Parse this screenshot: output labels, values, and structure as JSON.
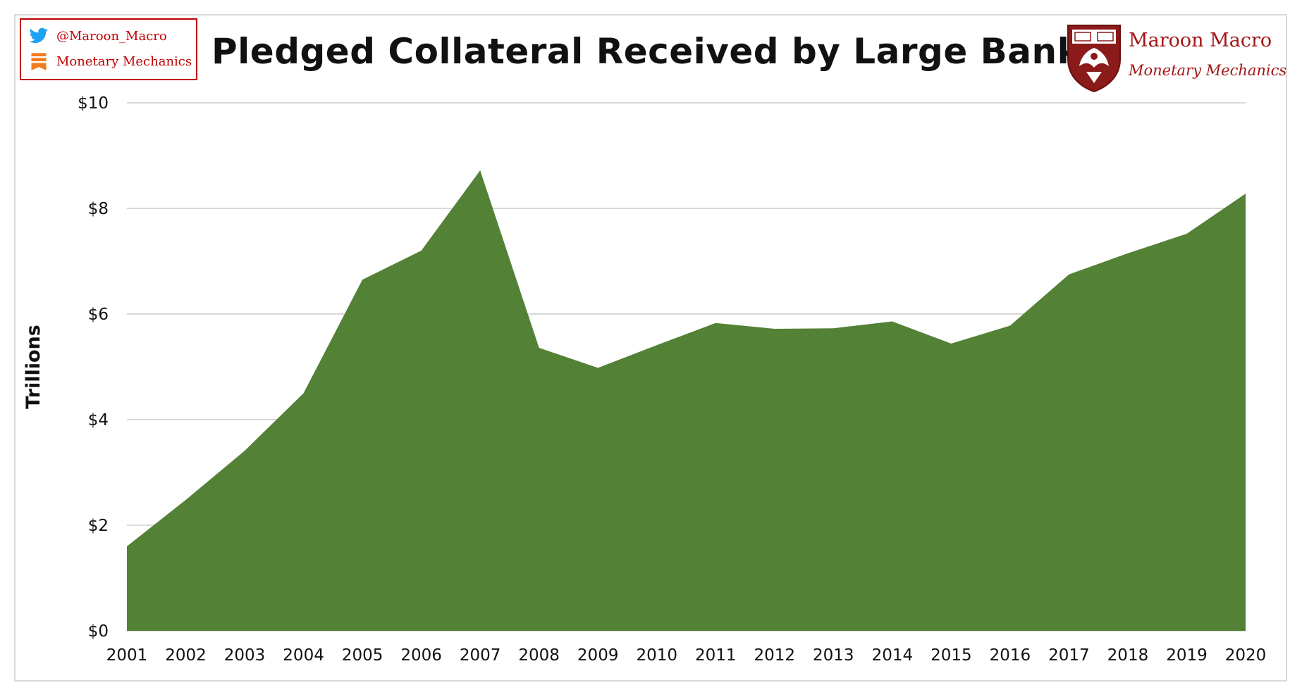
{
  "title": "Pledged Collateral Received by Large Banks",
  "social": {
    "twitter_handle": "@Maroon_Macro",
    "blog_name": "Monetary Mechanics",
    "twitter_icon": "twitter-bird-icon",
    "blog_icon": "bookmark-icon"
  },
  "brand": {
    "name": "Maroon Macro",
    "subtitle": "Monetary Mechanics",
    "logo": "university-shield-phoenix-logo"
  },
  "colors": {
    "area_fill": "#538135",
    "grid": "#d9d9d9",
    "brand": "#a31515",
    "social_accent": "#c00000"
  },
  "chart_data": {
    "type": "area",
    "title": "Pledged Collateral Received by Large Banks",
    "xlabel": "",
    "ylabel": "Trillions",
    "x": [
      "2001",
      "2002",
      "2003",
      "2004",
      "2005",
      "2006",
      "2007",
      "2008",
      "2009",
      "2010",
      "2011",
      "2012",
      "2013",
      "2014",
      "2015",
      "2016",
      "2017",
      "2018",
      "2019",
      "2020"
    ],
    "series": [
      {
        "values": [
          1.6,
          2.48,
          3.41,
          4.5,
          6.65,
          7.2,
          8.72,
          5.36,
          4.98,
          5.41,
          5.83,
          5.72,
          5.73,
          5.86,
          5.44,
          5.78,
          6.75,
          7.15,
          7.52,
          8.28
        ]
      }
    ],
    "ylim": [
      0,
      10
    ],
    "yticks": [
      0,
      2,
      4,
      6,
      8,
      10
    ],
    "ytick_labels": [
      "$0",
      "$2",
      "$4",
      "$6",
      "$8",
      "$10"
    ],
    "grid": true,
    "legend": "none"
  }
}
